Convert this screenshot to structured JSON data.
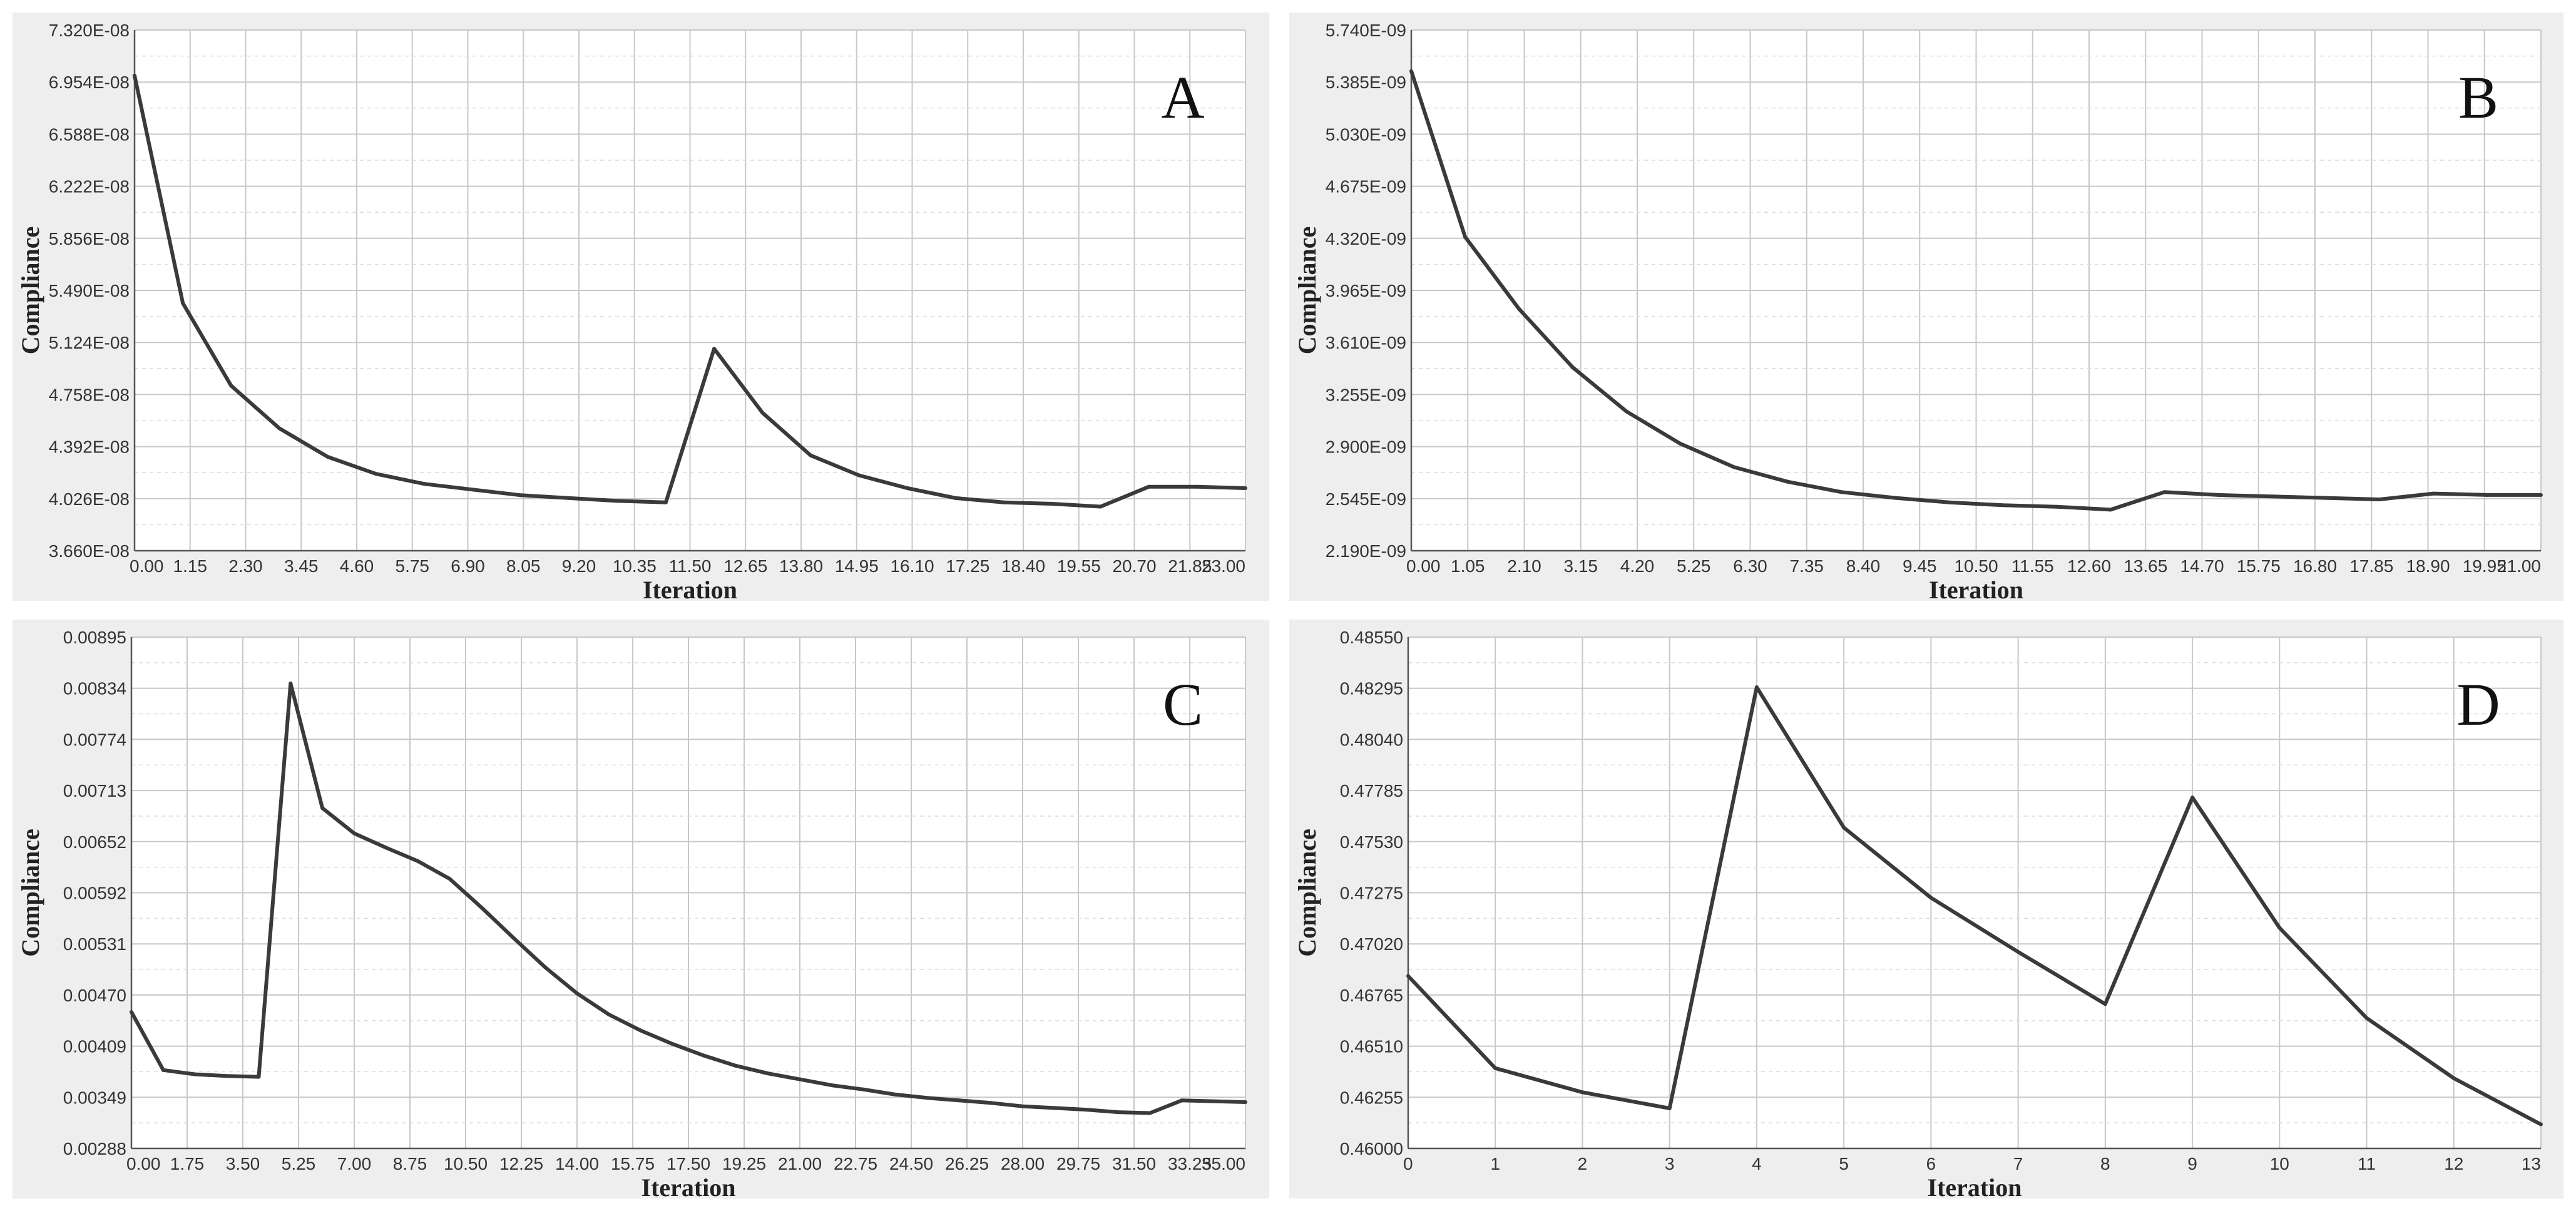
{
  "chart_data": [
    {
      "type": "line",
      "panel_label": "A",
      "xlabel": "Iteration",
      "ylabel": "Compliance",
      "xlim": [
        0,
        23
      ],
      "ylim": [
        3.66e-08,
        7.32e-08
      ],
      "grid": true,
      "xtick_labels": [
        "0.00",
        "1.15",
        "2.30",
        "3.45",
        "4.60",
        "5.75",
        "6.90",
        "8.05",
        "9.20",
        "10.35",
        "11.50",
        "12.65",
        "13.80",
        "14.95",
        "16.10",
        "17.25",
        "18.40",
        "19.55",
        "20.70",
        "21.85",
        "23.00"
      ],
      "ytick_labels": [
        "3.660E-08",
        "4.026E-08",
        "4.392E-08",
        "4.758E-08",
        "5.124E-08",
        "5.490E-08",
        "5.856E-08",
        "6.222E-08",
        "6.588E-08",
        "6.954E-08",
        "7.320E-08"
      ],
      "x": [
        0,
        1,
        2,
        3,
        4,
        5,
        6,
        7,
        8,
        9,
        10,
        11,
        12,
        13,
        14,
        15,
        16,
        17,
        18,
        19,
        20,
        21,
        22,
        23
      ],
      "y": [
        7e-08,
        5.4e-08,
        4.82e-08,
        4.52e-08,
        4.32e-08,
        4.2e-08,
        4.13e-08,
        4.09e-08,
        4.05e-08,
        4.03e-08,
        4.01e-08,
        4e-08,
        5.08e-08,
        4.63e-08,
        4.33e-08,
        4.19e-08,
        4.1e-08,
        4.03e-08,
        4e-08,
        3.99e-08,
        3.97e-08,
        4.11e-08,
        4.11e-08,
        4.1e-08
      ]
    },
    {
      "type": "line",
      "panel_label": "B",
      "xlabel": "Iteration",
      "ylabel": "Compliance",
      "xlim": [
        0,
        21
      ],
      "ylim": [
        2.19e-09,
        5.74e-09
      ],
      "grid": true,
      "xtick_labels": [
        "0.00",
        "1.05",
        "2.10",
        "3.15",
        "4.20",
        "5.25",
        "6.30",
        "7.35",
        "8.40",
        "9.45",
        "10.50",
        "11.55",
        "12.60",
        "13.65",
        "14.70",
        "15.75",
        "16.80",
        "17.85",
        "18.90",
        "19.95",
        "21.00"
      ],
      "ytick_labels": [
        "2.190E-09",
        "2.545E-09",
        "2.900E-09",
        "3.255E-09",
        "3.610E-09",
        "3.965E-09",
        "4.320E-09",
        "4.675E-09",
        "5.030E-09",
        "5.385E-09",
        "5.740E-09"
      ],
      "x": [
        0,
        1,
        2,
        3,
        4,
        5,
        6,
        7,
        8,
        9,
        10,
        11,
        12,
        13,
        14,
        15,
        16,
        17,
        18,
        19,
        20,
        21
      ],
      "y": [
        5.46e-09,
        4.33e-09,
        3.84e-09,
        3.44e-09,
        3.14e-09,
        2.92e-09,
        2.76e-09,
        2.66e-09,
        2.59e-09,
        2.55e-09,
        2.52e-09,
        2.5e-09,
        2.49e-09,
        2.47e-09,
        2.59e-09,
        2.57e-09,
        2.56e-09,
        2.55e-09,
        2.54e-09,
        2.58e-09,
        2.57e-09,
        2.57e-09
      ]
    },
    {
      "type": "line",
      "panel_label": "C",
      "xlabel": "Iteration",
      "ylabel": "Compliance",
      "xlim": [
        0,
        35
      ],
      "ylim": [
        0.00288,
        0.00895
      ],
      "grid": true,
      "xtick_labels": [
        "0.00",
        "1.75",
        "3.50",
        "5.25",
        "7.00",
        "8.75",
        "10.50",
        "12.25",
        "14.00",
        "15.75",
        "17.50",
        "19.25",
        "21.00",
        "22.75",
        "24.50",
        "26.25",
        "28.00",
        "29.75",
        "31.50",
        "33.25",
        "35.00"
      ],
      "ytick_labels": [
        "0.00288",
        "0.00349",
        "0.00409",
        "0.00470",
        "0.00531",
        "0.00592",
        "0.00652",
        "0.00713",
        "0.00774",
        "0.00834",
        "0.00895"
      ],
      "x": [
        0,
        1,
        2,
        3,
        4,
        5,
        6,
        7,
        8,
        9,
        10,
        11,
        12,
        13,
        14,
        15,
        16,
        17,
        18,
        19,
        20,
        21,
        22,
        23,
        24,
        25,
        26,
        27,
        28,
        29,
        30,
        31,
        32,
        33,
        34,
        35
      ],
      "y": [
        0.0045,
        0.00381,
        0.00376,
        0.00374,
        0.00373,
        0.0084,
        0.00692,
        0.00662,
        0.00645,
        0.00629,
        0.00608,
        0.00574,
        0.00538,
        0.00503,
        0.00472,
        0.00447,
        0.00428,
        0.00412,
        0.00398,
        0.00386,
        0.00377,
        0.0037,
        0.00363,
        0.00358,
        0.00352,
        0.00348,
        0.00345,
        0.00342,
        0.00338,
        0.00336,
        0.00334,
        0.00331,
        0.0033,
        0.00345,
        0.00344,
        0.00343
      ]
    },
    {
      "type": "line",
      "panel_label": "D",
      "xlabel": "Iteration",
      "ylabel": "Compliance",
      "xlim": [
        0,
        13
      ],
      "ylim": [
        0.46,
        0.4855
      ],
      "grid": true,
      "xtick_labels": [
        "0",
        "1",
        "2",
        "3",
        "4",
        "5",
        "6",
        "7",
        "8",
        "9",
        "10",
        "11",
        "12",
        "13"
      ],
      "ytick_labels": [
        "0.46000",
        "0.46255",
        "0.46510",
        "0.46765",
        "0.47020",
        "0.47275",
        "0.47530",
        "0.47785",
        "0.48040",
        "0.48295",
        "0.48550"
      ],
      "x": [
        0,
        1,
        2,
        3,
        4,
        5,
        6,
        7,
        8,
        9,
        10,
        11,
        12,
        13
      ],
      "y": [
        0.4686,
        0.464,
        0.4628,
        0.462,
        0.483,
        0.476,
        0.4725,
        0.4698,
        0.4672,
        0.4775,
        0.471,
        0.4665,
        0.4635,
        0.4612
      ]
    }
  ]
}
